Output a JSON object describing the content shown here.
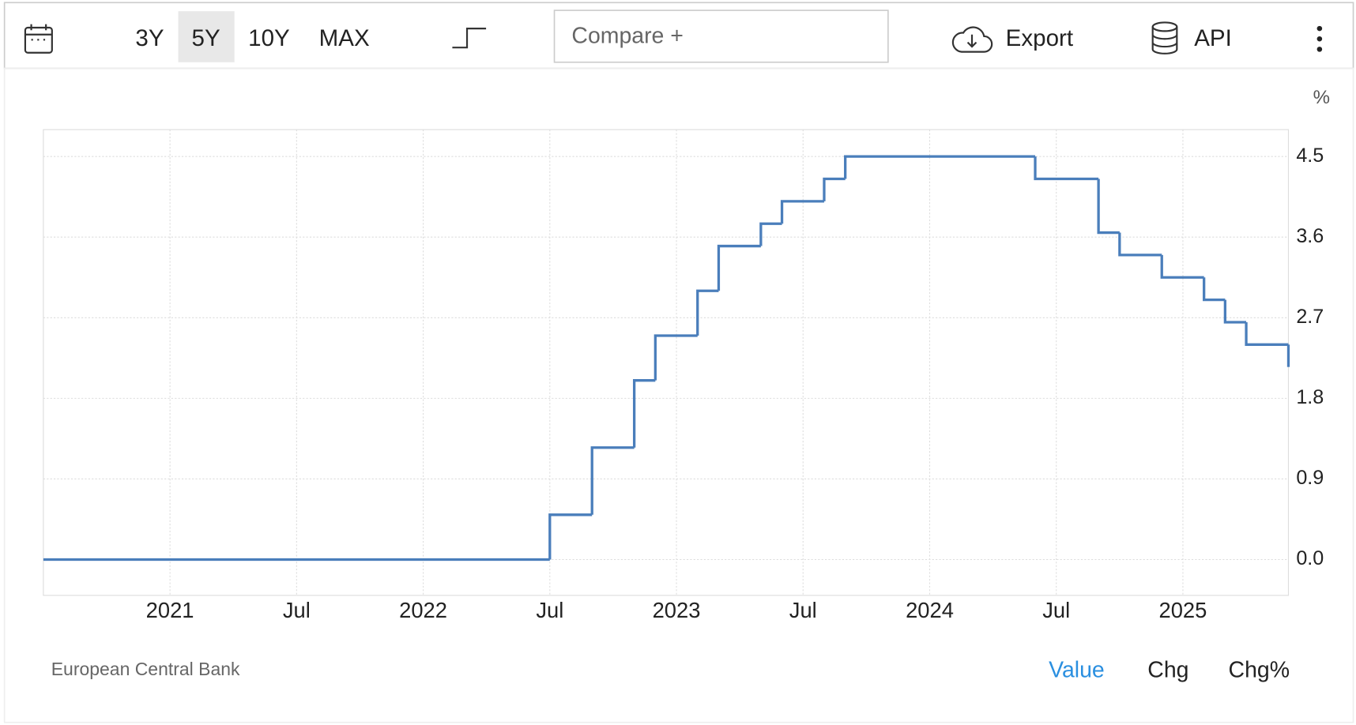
{
  "toolbar": {
    "ranges": [
      "3Y",
      "5Y",
      "10Y",
      "MAX"
    ],
    "active_range": "5Y",
    "compare": "Compare +",
    "export": "Export",
    "api": "API"
  },
  "chart_data": {
    "type": "line",
    "step": "post",
    "y_unit": "%",
    "source": "European Central Bank",
    "x": [
      "2020-07",
      "2022-07",
      "2022-09",
      "2022-11",
      "2022-12",
      "2023-02",
      "2023-03",
      "2023-05",
      "2023-06",
      "2023-08",
      "2023-09",
      "2024-06",
      "2024-09",
      "2024-10",
      "2024-12",
      "2025-02",
      "2025-03",
      "2025-04",
      "2025-06"
    ],
    "series": [
      {
        "color": "#4a7ebb",
        "values": [
          0,
          0.5,
          1.25,
          2.0,
          2.5,
          3.0,
          3.5,
          3.75,
          4.0,
          4.25,
          4.5,
          4.25,
          3.65,
          3.4,
          3.15,
          2.9,
          2.65,
          2.4,
          2.15
        ]
      }
    ],
    "xlim": [
      "2020-07",
      "2025-06"
    ],
    "xticks": [
      {
        "value": "2021-01",
        "label": "2021"
      },
      {
        "value": "2021-07",
        "label": "Jul"
      },
      {
        "value": "2022-01",
        "label": "2022"
      },
      {
        "value": "2022-07",
        "label": "Jul"
      },
      {
        "value": "2023-01",
        "label": "2023"
      },
      {
        "value": "2023-07",
        "label": "Jul"
      },
      {
        "value": "2024-01",
        "label": "2024"
      },
      {
        "value": "2024-07",
        "label": "Jul"
      },
      {
        "value": "2025-01",
        "label": "2025"
      }
    ],
    "ylim": [
      -0.4,
      4.8
    ],
    "yticks": [
      {
        "value": 0,
        "label": "0.0"
      },
      0.9,
      1.8,
      2.7,
      3.6,
      4.5
    ],
    "grid": true
  },
  "views": [
    "Value",
    "Chg",
    "Chg%"
  ],
  "active_view": "Value"
}
